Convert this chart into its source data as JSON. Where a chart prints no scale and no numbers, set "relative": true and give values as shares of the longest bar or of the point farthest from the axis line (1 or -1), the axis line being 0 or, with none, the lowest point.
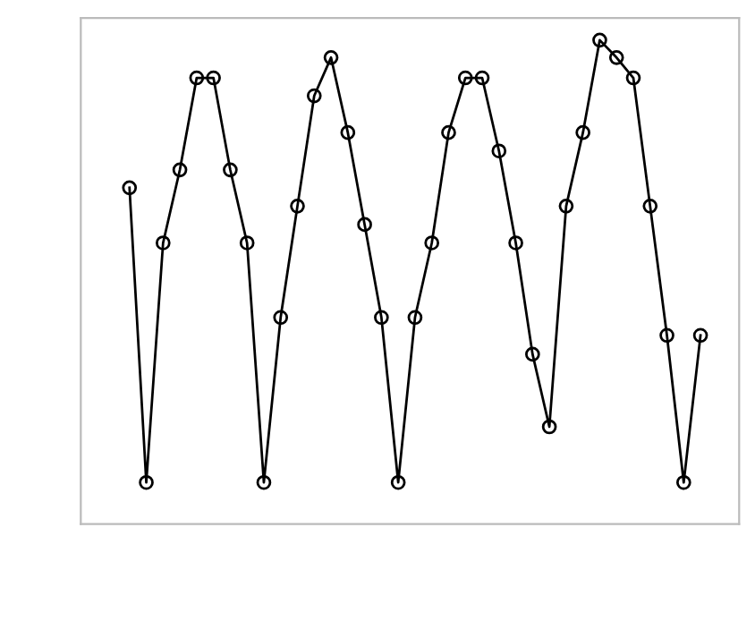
{
  "chart_data": {
    "type": "line",
    "relative": true,
    "marker": "circle",
    "line_style": "solid",
    "categories": [
      null,
      null,
      null,
      null,
      null,
      null,
      null,
      null,
      null,
      null,
      null,
      null,
      null,
      null,
      null,
      null,
      null,
      null,
      null,
      null,
      null,
      null,
      null,
      null,
      null,
      null,
      null,
      null,
      null,
      null,
      null,
      null,
      null,
      null,
      null
    ],
    "series": [
      {
        "color": "#000000",
        "values": [
          0.695,
          0.086,
          0.581,
          0.732,
          0.922,
          0.922,
          0.732,
          0.581,
          0.086,
          0.427,
          0.657,
          0.885,
          0.964,
          0.809,
          0.619,
          0.427,
          0.086,
          0.427,
          0.581,
          0.809,
          0.922,
          0.922,
          0.771,
          0.581,
          0.351,
          0.201,
          0.657,
          0.809,
          1,
          0.964,
          0.922,
          0.657,
          0.39,
          0.086,
          0.39
        ]
      }
    ]
  }
}
